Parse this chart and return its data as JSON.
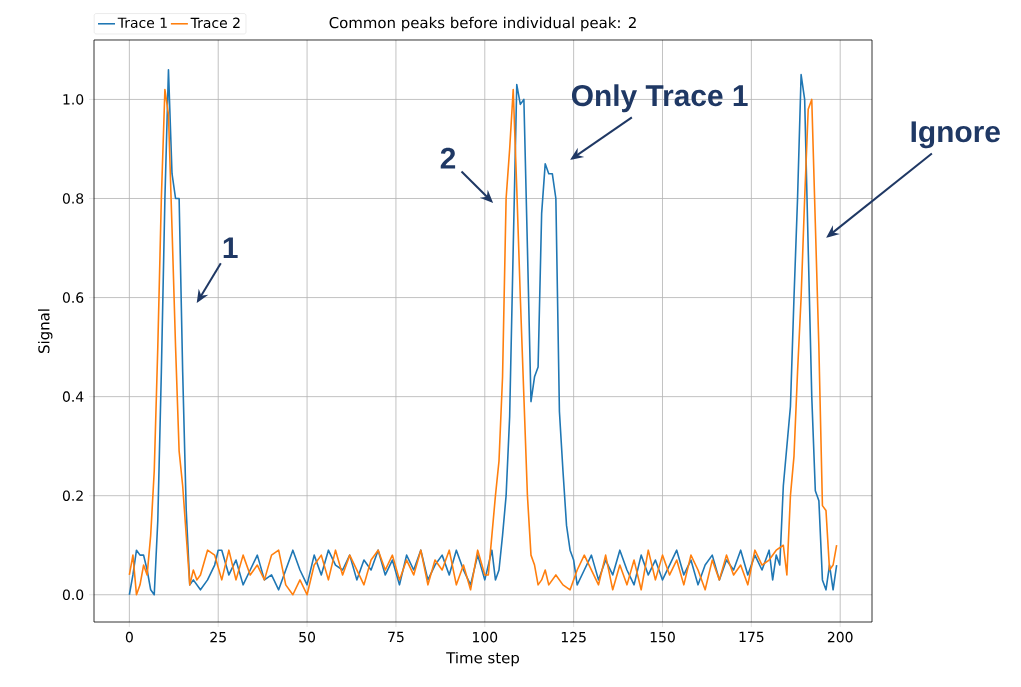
{
  "chart_data": {
    "type": "line",
    "title": "Common peaks before individual peak: 2",
    "xlabel": "Time step",
    "ylabel": "Signal",
    "xlim": [
      -9.95,
      208.95
    ],
    "ylim": [
      -0.055,
      1.12
    ],
    "xticks": [
      0,
      25,
      50,
      75,
      100,
      125,
      150,
      175,
      200
    ],
    "yticks": [
      {
        "value": 0,
        "label": "0.0"
      },
      0.2,
      0.4,
      0.6,
      0.8,
      {
        "value": 1,
        "label": "1.0"
      }
    ],
    "grid": true,
    "legend": "top left",
    "line_style": "solid",
    "marker": "none",
    "series": [
      {
        "name": "Trace 1",
        "color": "#1f77b4",
        "x": [
          0,
          1,
          2,
          3,
          4,
          5,
          6,
          7,
          8,
          9,
          10,
          11,
          12,
          13,
          14,
          15,
          16,
          17,
          18,
          20,
          22,
          24,
          25,
          26,
          28,
          30,
          32,
          34,
          36,
          38,
          40,
          42,
          44,
          46,
          48,
          50,
          52,
          54,
          56,
          58,
          60,
          62,
          64,
          66,
          68,
          70,
          72,
          74,
          76,
          78,
          80,
          82,
          84,
          86,
          88,
          90,
          92,
          94,
          96,
          98,
          100,
          102,
          103,
          104,
          105,
          106,
          107,
          108,
          109,
          110,
          111,
          112,
          113,
          114,
          115,
          116,
          117,
          118,
          119,
          120,
          121,
          122,
          123,
          124,
          125,
          126,
          128,
          130,
          132,
          134,
          136,
          138,
          140,
          142,
          144,
          146,
          148,
          150,
          152,
          154,
          156,
          158,
          160,
          162,
          164,
          166,
          168,
          170,
          172,
          174,
          176,
          178,
          180,
          181,
          182,
          183,
          184,
          185,
          186,
          187,
          188,
          189,
          190,
          191,
          192,
          193,
          194,
          195,
          196,
          197,
          198,
          199
        ],
        "values": [
          0.0,
          0.04,
          0.09,
          0.08,
          0.08,
          0.05,
          0.01,
          0.0,
          0.15,
          0.45,
          0.8,
          1.06,
          0.85,
          0.8,
          0.8,
          0.45,
          0.17,
          0.02,
          0.03,
          0.01,
          0.03,
          0.06,
          0.09,
          0.09,
          0.04,
          0.07,
          0.02,
          0.05,
          0.08,
          0.03,
          0.04,
          0.01,
          0.05,
          0.09,
          0.05,
          0.02,
          0.08,
          0.04,
          0.09,
          0.06,
          0.05,
          0.08,
          0.03,
          0.07,
          0.05,
          0.09,
          0.04,
          0.07,
          0.02,
          0.08,
          0.05,
          0.09,
          0.03,
          0.06,
          0.08,
          0.04,
          0.09,
          0.05,
          0.02,
          0.08,
          0.03,
          0.09,
          0.03,
          0.05,
          0.12,
          0.2,
          0.36,
          0.7,
          1.03,
          0.99,
          1.0,
          0.7,
          0.39,
          0.44,
          0.46,
          0.77,
          0.87,
          0.85,
          0.85,
          0.8,
          0.37,
          0.25,
          0.14,
          0.09,
          0.07,
          0.02,
          0.05,
          0.08,
          0.03,
          0.07,
          0.04,
          0.09,
          0.05,
          0.02,
          0.08,
          0.04,
          0.07,
          0.03,
          0.06,
          0.09,
          0.04,
          0.07,
          0.02,
          0.06,
          0.08,
          0.03,
          0.07,
          0.05,
          0.09,
          0.04,
          0.08,
          0.05,
          0.09,
          0.03,
          0.08,
          0.06,
          0.22,
          0.3,
          0.38,
          0.6,
          0.8,
          1.05,
          1.0,
          0.7,
          0.4,
          0.21,
          0.19,
          0.03,
          0.01,
          0.06,
          0.01,
          0.06
        ]
      },
      {
        "name": "Trace 2",
        "color": "#ff7f0e",
        "x": [
          0,
          1,
          2,
          3,
          4,
          5,
          6,
          7,
          8,
          9,
          10,
          11,
          12,
          13,
          14,
          15,
          16,
          17,
          18,
          19,
          20,
          22,
          24,
          26,
          28,
          30,
          32,
          34,
          36,
          38,
          40,
          42,
          44,
          46,
          48,
          50,
          52,
          54,
          56,
          58,
          60,
          62,
          64,
          66,
          68,
          70,
          72,
          74,
          76,
          78,
          80,
          82,
          84,
          86,
          88,
          90,
          92,
          94,
          96,
          98,
          100,
          101,
          102,
          103,
          104,
          105,
          106,
          107,
          108,
          109,
          110,
          111,
          112,
          113,
          114,
          115,
          116,
          117,
          118,
          120,
          122,
          124,
          126,
          128,
          130,
          132,
          134,
          136,
          138,
          140,
          142,
          144,
          146,
          148,
          150,
          152,
          154,
          156,
          158,
          160,
          162,
          164,
          166,
          168,
          170,
          172,
          174,
          176,
          178,
          180,
          182,
          184,
          185,
          186,
          187,
          188,
          189,
          190,
          191,
          192,
          193,
          194,
          195,
          196,
          197,
          198,
          199
        ],
        "values": [
          0.04,
          0.08,
          0.0,
          0.02,
          0.06,
          0.04,
          0.12,
          0.25,
          0.5,
          0.8,
          1.02,
          0.97,
          0.74,
          0.5,
          0.29,
          0.22,
          0.12,
          0.02,
          0.05,
          0.03,
          0.04,
          0.09,
          0.08,
          0.03,
          0.09,
          0.03,
          0.08,
          0.04,
          0.06,
          0.03,
          0.08,
          0.09,
          0.02,
          0.0,
          0.03,
          0.0,
          0.06,
          0.08,
          0.03,
          0.09,
          0.04,
          0.08,
          0.05,
          0.02,
          0.07,
          0.09,
          0.05,
          0.08,
          0.03,
          0.07,
          0.04,
          0.09,
          0.02,
          0.07,
          0.05,
          0.09,
          0.02,
          0.06,
          0.01,
          0.09,
          0.04,
          0.04,
          0.12,
          0.2,
          0.27,
          0.44,
          0.8,
          0.9,
          1.02,
          0.82,
          0.6,
          0.4,
          0.2,
          0.08,
          0.06,
          0.02,
          0.03,
          0.05,
          0.02,
          0.04,
          0.02,
          0.01,
          0.05,
          0.08,
          0.05,
          0.02,
          0.08,
          0.01,
          0.06,
          0.02,
          0.07,
          0.01,
          0.09,
          0.03,
          0.08,
          0.04,
          0.07,
          0.02,
          0.08,
          0.05,
          0.01,
          0.07,
          0.03,
          0.08,
          0.04,
          0.06,
          0.02,
          0.09,
          0.06,
          0.07,
          0.09,
          0.1,
          0.04,
          0.2,
          0.28,
          0.45,
          0.6,
          0.8,
          0.98,
          1.0,
          0.75,
          0.5,
          0.18,
          0.17,
          0.05,
          0.06,
          0.1
        ]
      }
    ],
    "annotations": [
      "1",
      "2",
      "Only Trace 1",
      "Ignore"
    ]
  }
}
